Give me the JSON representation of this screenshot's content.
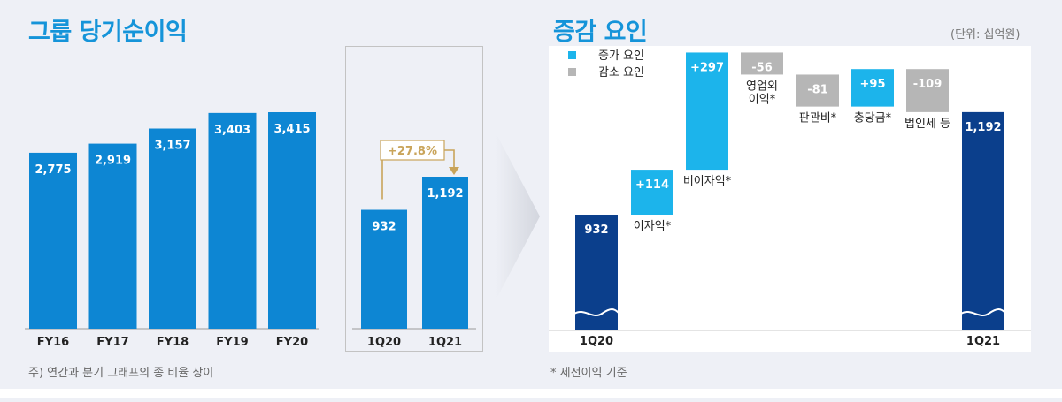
{
  "left": {
    "title": "그룹 당기순이익",
    "footnote": "주) 연간과 분기 그래프의 종 비율 상이"
  },
  "right": {
    "title": "증감 요인",
    "unit": "(단위: 십억원)",
    "footnote": "* 세전이익 기준"
  },
  "colors": {
    "blue": "#0d86d3",
    "light_blue": "#1cb4eb",
    "gray": "#b6b6b6",
    "navy": "#0b3f8c",
    "gold": "#c9a45a",
    "title": "#1594d9"
  },
  "chart_data": [
    {
      "type": "bar",
      "name": "annual",
      "categories": [
        "FY16",
        "FY17",
        "FY18",
        "FY19",
        "FY20"
      ],
      "values": [
        2775,
        2919,
        3157,
        3403,
        3415
      ],
      "value_labels": [
        "2,775",
        "2,919",
        "3,157",
        "3,403",
        "3,415"
      ]
    },
    {
      "type": "bar",
      "name": "quarterly",
      "categories": [
        "1Q20",
        "1Q21"
      ],
      "values": [
        932,
        1192
      ],
      "value_labels": [
        "932",
        "1,192"
      ],
      "growth_label": "+27.8%"
    },
    {
      "type": "bar",
      "name": "waterfall",
      "legend": [
        {
          "label": "증가 요인",
          "kind": "increase"
        },
        {
          "label": "감소 요인",
          "kind": "decrease"
        }
      ],
      "steps": [
        {
          "label": "1Q20",
          "value": 932,
          "value_label": "932",
          "kind": "total"
        },
        {
          "label": "이자익*",
          "value": 114,
          "value_label": "+114",
          "kind": "increase"
        },
        {
          "label": "비이자익*",
          "value": 297,
          "value_label": "+297",
          "kind": "increase"
        },
        {
          "label": "영업외\n이익*",
          "value": -56,
          "value_label": "-56",
          "kind": "decrease"
        },
        {
          "label": "판관비*",
          "value": -81,
          "value_label": "-81",
          "kind": "decrease"
        },
        {
          "label": "충당금*",
          "value": 95,
          "value_label": "+95",
          "kind": "increase"
        },
        {
          "label": "법인세 등",
          "value": -109,
          "value_label": "-109",
          "kind": "decrease"
        },
        {
          "label": "1Q21",
          "value": 1192,
          "value_label": "1,192",
          "kind": "total"
        }
      ]
    }
  ]
}
